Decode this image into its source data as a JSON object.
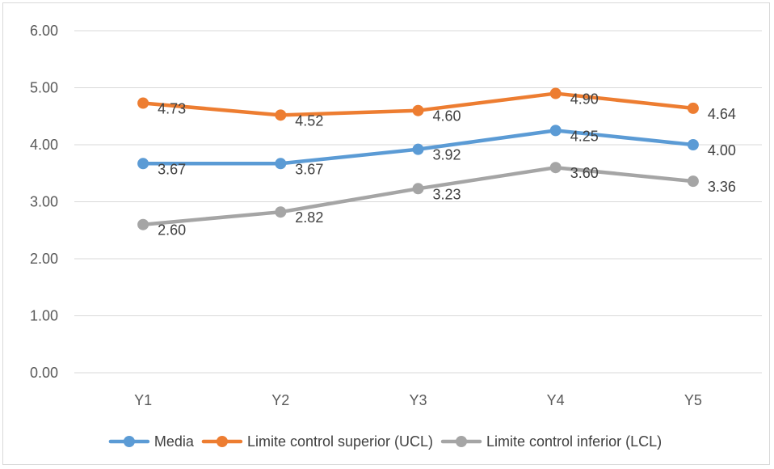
{
  "chart_data": {
    "type": "line",
    "title": "",
    "xlabel": "",
    "ylabel": "",
    "categories": [
      "Y1",
      "Y2",
      "Y3",
      "Y4",
      "Y5"
    ],
    "ylim": [
      0,
      6
    ],
    "yticks": [
      "0.00",
      "1.00",
      "2.00",
      "3.00",
      "4.00",
      "5.00",
      "6.00"
    ],
    "grid": true,
    "legend_position": "bottom",
    "series": [
      {
        "name": "Media",
        "values": [
          3.67,
          3.67,
          3.92,
          4.25,
          4.0
        ],
        "labels": [
          "3.67",
          "3.67",
          "3.92",
          "4.25",
          "4.00"
        ],
        "color": "#5b9bd5"
      },
      {
        "name": "Limite control superior (UCL)",
        "values": [
          4.73,
          4.52,
          4.6,
          4.9,
          4.64
        ],
        "labels": [
          "4.73",
          "4.52",
          "4.60",
          "4.90",
          "4.64"
        ],
        "color": "#ed7d31"
      },
      {
        "name": "Limite control inferior (LCL)",
        "values": [
          2.6,
          2.82,
          3.23,
          3.6,
          3.36
        ],
        "labels": [
          "2.60",
          "2.82",
          "3.23",
          "3.60",
          "3.36"
        ],
        "color": "#a5a5a5"
      }
    ]
  }
}
